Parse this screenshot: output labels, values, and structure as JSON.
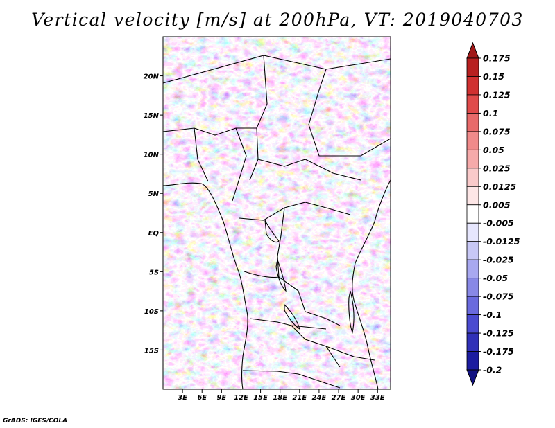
{
  "figure": {
    "title": "Vertical velocity [m/s] at 200hPa, VT: 2019040703",
    "credit": "GrADS: IGES/COLA"
  },
  "chart_data": {
    "type": "heatmap",
    "title": "Vertical velocity [m/s] at 200hPa, VT: 2019040703",
    "variable": "Vertical velocity",
    "units": "m/s",
    "level": "200hPa",
    "valid_time": "2019040703",
    "lon_range": [
      0,
      35
    ],
    "lat_range": [
      -20,
      25
    ],
    "lon_ticks": [
      3,
      6,
      9,
      12,
      15,
      18,
      21,
      24,
      27,
      30,
      33
    ],
    "lon_tick_labels": [
      "3E",
      "6E",
      "9E",
      "12E",
      "15E",
      "18E",
      "21E",
      "24E",
      "27E",
      "30E",
      "33E"
    ],
    "lat_ticks": [
      20,
      15,
      10,
      5,
      0,
      -5,
      -10,
      -15
    ],
    "lat_tick_labels": [
      "20N",
      "15N",
      "10N",
      "5N",
      "EQ",
      "5S",
      "10S",
      "15S"
    ],
    "colorbar": {
      "labels": [
        "0.175",
        "0.15",
        "0.125",
        "0.1",
        "0.075",
        "0.05",
        "0.025",
        "0.0125",
        "0.005",
        "-0.005",
        "-0.0125",
        "-0.025",
        "-0.05",
        "-0.075",
        "-0.1",
        "-0.125",
        "-0.175",
        "-0.2"
      ],
      "colors": [
        "#a01818",
        "#b82020",
        "#d03030",
        "#e04a4a",
        "#e86a6a",
        "#f08a8a",
        "#f6aaaa",
        "#facaca",
        "#fde6e6",
        "#ffffff",
        "#e6e6fd",
        "#c8c8f6",
        "#a8a8f0",
        "#8888e6",
        "#6a6ade",
        "#4a4ad0",
        "#3030b8",
        "#1c1ca0",
        "#101080"
      ]
    }
  }
}
